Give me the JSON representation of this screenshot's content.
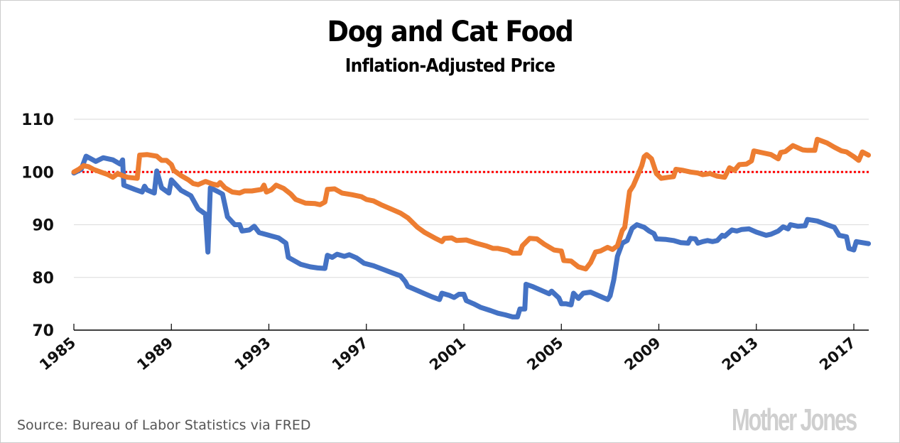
{
  "header": {
    "title": "Dog and Cat Food",
    "subtitle": "Inflation-Adjusted Price"
  },
  "footer": {
    "source": "Source: Bureau of Labor Statistics via FRED",
    "logo": "Mother Jones"
  },
  "colors": {
    "series_blue": "#4472c4",
    "series_orange": "#ed7d31",
    "reference_line": "#ff0000",
    "gridline": "#e0e0e0",
    "axis": "#000000"
  },
  "chart_data": {
    "type": "line",
    "title": "Dog and Cat Food",
    "subtitle": "Inflation-Adjusted Price",
    "xlabel": "",
    "ylabel": "",
    "xlim": [
      1985,
      2017.6
    ],
    "ylim": [
      70,
      110
    ],
    "yticks": [
      70,
      80,
      90,
      100,
      110
    ],
    "ytick_labels": [
      "70",
      "80",
      "90",
      "100",
      "110"
    ],
    "xticks": [
      1985,
      1989,
      1993,
      1997,
      2001,
      2005,
      2009,
      2013,
      2017
    ],
    "xtick_labels": [
      "1985",
      "1989",
      "1993",
      "1997",
      "2001",
      "2005",
      "2009",
      "2013",
      "2017"
    ],
    "grid": "horizontal",
    "legend": "none",
    "reference_line": {
      "y": 100,
      "style": "dotted",
      "color": "#ff0000"
    },
    "series": [
      {
        "name": "blue",
        "color": "#4472c4",
        "points": [
          [
            1985.0,
            99.8
          ],
          [
            1985.3,
            100.5
          ],
          [
            1985.5,
            103.0
          ],
          [
            1985.9,
            102.0
          ],
          [
            1986.2,
            102.7
          ],
          [
            1986.6,
            102.3
          ],
          [
            1986.9,
            101.5
          ],
          [
            1987.0,
            102.3
          ],
          [
            1987.05,
            97.5
          ],
          [
            1987.5,
            96.7
          ],
          [
            1987.8,
            96.2
          ],
          [
            1987.9,
            97.3
          ],
          [
            1988.0,
            96.6
          ],
          [
            1988.3,
            96.0
          ],
          [
            1988.4,
            100.2
          ],
          [
            1988.6,
            97.0
          ],
          [
            1988.9,
            96.0
          ],
          [
            1989.0,
            98.5
          ],
          [
            1989.4,
            96.5
          ],
          [
            1989.8,
            95.5
          ],
          [
            1990.1,
            93.0
          ],
          [
            1990.4,
            92.0
          ],
          [
            1990.5,
            84.8
          ],
          [
            1990.6,
            97.0
          ],
          [
            1990.9,
            96.3
          ],
          [
            1991.1,
            95.8
          ],
          [
            1991.3,
            91.5
          ],
          [
            1991.6,
            90.0
          ],
          [
            1991.8,
            90.0
          ],
          [
            1991.9,
            88.8
          ],
          [
            1992.2,
            89.0
          ],
          [
            1992.4,
            89.7
          ],
          [
            1992.6,
            88.5
          ],
          [
            1993.0,
            88.0
          ],
          [
            1993.4,
            87.5
          ],
          [
            1993.7,
            86.5
          ],
          [
            1993.8,
            83.8
          ],
          [
            1994.3,
            82.5
          ],
          [
            1994.7,
            82.0
          ],
          [
            1995.0,
            81.8
          ],
          [
            1995.3,
            81.7
          ],
          [
            1995.4,
            84.2
          ],
          [
            1995.6,
            83.8
          ],
          [
            1995.8,
            84.4
          ],
          [
            1996.1,
            84.0
          ],
          [
            1996.3,
            84.3
          ],
          [
            1996.6,
            83.7
          ],
          [
            1996.9,
            82.7
          ],
          [
            1997.3,
            82.2
          ],
          [
            1997.7,
            81.5
          ],
          [
            1998.1,
            80.8
          ],
          [
            1998.4,
            80.3
          ],
          [
            1998.6,
            79.2
          ],
          [
            1998.7,
            78.3
          ],
          [
            1999.1,
            77.5
          ],
          [
            1999.4,
            76.9
          ],
          [
            1999.7,
            76.3
          ],
          [
            2000.0,
            75.8
          ],
          [
            2000.1,
            77.0
          ],
          [
            2000.4,
            76.6
          ],
          [
            2000.6,
            76.2
          ],
          [
            2000.8,
            76.8
          ],
          [
            2001.0,
            76.8
          ],
          [
            2001.1,
            75.6
          ],
          [
            2001.4,
            75.0
          ],
          [
            2001.7,
            74.3
          ],
          [
            2002.1,
            73.7
          ],
          [
            2002.4,
            73.2
          ],
          [
            2002.7,
            72.9
          ],
          [
            2003.0,
            72.5
          ],
          [
            2003.2,
            72.5
          ],
          [
            2003.3,
            74.0
          ],
          [
            2003.5,
            74.0
          ],
          [
            2003.55,
            78.7
          ],
          [
            2003.8,
            78.3
          ],
          [
            2004.2,
            77.5
          ],
          [
            2004.5,
            76.9
          ],
          [
            2004.6,
            77.4
          ],
          [
            2004.9,
            76.1
          ],
          [
            2005.0,
            75.0
          ],
          [
            2005.2,
            75.0
          ],
          [
            2005.4,
            74.8
          ],
          [
            2005.5,
            77.0
          ],
          [
            2005.7,
            76.0
          ],
          [
            2005.9,
            77.0
          ],
          [
            2006.2,
            77.2
          ],
          [
            2006.4,
            76.8
          ],
          [
            2006.7,
            76.2
          ],
          [
            2006.9,
            75.8
          ],
          [
            2007.0,
            76.5
          ],
          [
            2007.15,
            79.5
          ],
          [
            2007.3,
            84.0
          ],
          [
            2007.5,
            86.5
          ],
          [
            2007.7,
            87.0
          ],
          [
            2007.9,
            89.3
          ],
          [
            2008.1,
            90.0
          ],
          [
            2008.4,
            89.5
          ],
          [
            2008.6,
            88.8
          ],
          [
            2008.8,
            88.3
          ],
          [
            2008.9,
            87.3
          ],
          [
            2009.3,
            87.2
          ],
          [
            2009.6,
            87.0
          ],
          [
            2009.9,
            86.6
          ],
          [
            2010.2,
            86.5
          ],
          [
            2010.3,
            87.4
          ],
          [
            2010.5,
            87.3
          ],
          [
            2010.6,
            86.5
          ],
          [
            2010.8,
            86.8
          ],
          [
            2011.0,
            87.0
          ],
          [
            2011.2,
            86.8
          ],
          [
            2011.4,
            87.0
          ],
          [
            2011.6,
            88.0
          ],
          [
            2011.7,
            87.8
          ],
          [
            2012.0,
            89.0
          ],
          [
            2012.2,
            88.8
          ],
          [
            2012.4,
            89.1
          ],
          [
            2012.7,
            89.2
          ],
          [
            2013.0,
            88.6
          ],
          [
            2013.4,
            88.0
          ],
          [
            2013.6,
            88.2
          ],
          [
            2013.9,
            88.8
          ],
          [
            2014.1,
            89.6
          ],
          [
            2014.3,
            89.2
          ],
          [
            2014.4,
            90.0
          ],
          [
            2014.7,
            89.7
          ],
          [
            2015.0,
            89.8
          ],
          [
            2015.1,
            91.0
          ],
          [
            2015.5,
            90.7
          ],
          [
            2015.9,
            90.0
          ],
          [
            2016.2,
            89.5
          ],
          [
            2016.4,
            88.0
          ],
          [
            2016.7,
            87.7
          ],
          [
            2016.8,
            85.5
          ],
          [
            2017.0,
            85.2
          ],
          [
            2017.1,
            86.8
          ],
          [
            2017.6,
            86.4
          ]
        ]
      },
      {
        "name": "orange",
        "color": "#ed7d31",
        "points": [
          [
            1985.0,
            100.0
          ],
          [
            1985.2,
            100.5
          ],
          [
            1985.4,
            101.2
          ],
          [
            1985.6,
            101.0
          ],
          [
            1985.8,
            100.5
          ],
          [
            1986.1,
            100.0
          ],
          [
            1986.4,
            99.5
          ],
          [
            1986.6,
            99.0
          ],
          [
            1986.8,
            99.7
          ],
          [
            1987.0,
            99.3
          ],
          [
            1987.2,
            99.0
          ],
          [
            1987.6,
            98.8
          ],
          [
            1987.7,
            103.2
          ],
          [
            1988.0,
            103.3
          ],
          [
            1988.4,
            103.0
          ],
          [
            1988.6,
            102.2
          ],
          [
            1988.8,
            102.2
          ],
          [
            1989.0,
            101.4
          ],
          [
            1989.1,
            100.3
          ],
          [
            1989.4,
            99.3
          ],
          [
            1989.7,
            98.5
          ],
          [
            1989.9,
            97.8
          ],
          [
            1990.1,
            97.6
          ],
          [
            1990.4,
            98.2
          ],
          [
            1990.7,
            97.7
          ],
          [
            1990.9,
            97.5
          ],
          [
            1991.0,
            98.0
          ],
          [
            1991.2,
            97.0
          ],
          [
            1991.5,
            96.2
          ],
          [
            1991.8,
            96.0
          ],
          [
            1992.0,
            96.4
          ],
          [
            1992.3,
            96.4
          ],
          [
            1992.7,
            96.7
          ],
          [
            1992.8,
            97.5
          ],
          [
            1992.9,
            96.2
          ],
          [
            1993.1,
            96.6
          ],
          [
            1993.3,
            97.5
          ],
          [
            1993.6,
            96.9
          ],
          [
            1993.9,
            95.8
          ],
          [
            1994.1,
            94.8
          ],
          [
            1994.5,
            94.1
          ],
          [
            1994.9,
            94.0
          ],
          [
            1995.1,
            93.8
          ],
          [
            1995.3,
            94.3
          ],
          [
            1995.4,
            96.7
          ],
          [
            1995.7,
            96.8
          ],
          [
            1996.0,
            96.0
          ],
          [
            1996.4,
            95.7
          ],
          [
            1996.8,
            95.3
          ],
          [
            1997.0,
            94.8
          ],
          [
            1997.3,
            94.5
          ],
          [
            1997.6,
            93.8
          ],
          [
            1998.1,
            92.8
          ],
          [
            1998.4,
            92.2
          ],
          [
            1998.7,
            91.3
          ],
          [
            1999.1,
            89.5
          ],
          [
            1999.4,
            88.5
          ],
          [
            1999.8,
            87.5
          ],
          [
            2000.1,
            86.8
          ],
          [
            2000.2,
            87.4
          ],
          [
            2000.5,
            87.5
          ],
          [
            2000.7,
            87.0
          ],
          [
            2001.1,
            87.1
          ],
          [
            2001.5,
            86.5
          ],
          [
            2001.9,
            86.0
          ],
          [
            2002.2,
            85.5
          ],
          [
            2002.4,
            85.5
          ],
          [
            2002.8,
            85.1
          ],
          [
            2003.0,
            84.6
          ],
          [
            2003.3,
            84.6
          ],
          [
            2003.4,
            86.0
          ],
          [
            2003.7,
            87.4
          ],
          [
            2004.0,
            87.3
          ],
          [
            2004.3,
            86.3
          ],
          [
            2004.7,
            85.2
          ],
          [
            2005.0,
            85.0
          ],
          [
            2005.1,
            83.2
          ],
          [
            2005.4,
            83.1
          ],
          [
            2005.7,
            82.0
          ],
          [
            2006.0,
            81.6
          ],
          [
            2006.2,
            82.8
          ],
          [
            2006.4,
            84.8
          ],
          [
            2006.6,
            85.0
          ],
          [
            2006.9,
            85.7
          ],
          [
            2007.1,
            85.3
          ],
          [
            2007.3,
            86.0
          ],
          [
            2007.5,
            88.9
          ],
          [
            2007.6,
            89.5
          ],
          [
            2007.8,
            96.3
          ],
          [
            2007.95,
            97.4
          ],
          [
            2008.1,
            99.0
          ],
          [
            2008.3,
            101.2
          ],
          [
            2008.4,
            102.9
          ],
          [
            2008.5,
            103.3
          ],
          [
            2008.7,
            102.5
          ],
          [
            2008.9,
            99.7
          ],
          [
            2009.1,
            98.8
          ],
          [
            2009.4,
            99.0
          ],
          [
            2009.6,
            99.1
          ],
          [
            2009.7,
            100.5
          ],
          [
            2010.0,
            100.3
          ],
          [
            2010.3,
            100.0
          ],
          [
            2010.6,
            99.8
          ],
          [
            2010.8,
            99.5
          ],
          [
            2011.1,
            99.7
          ],
          [
            2011.4,
            99.2
          ],
          [
            2011.7,
            99.0
          ],
          [
            2011.9,
            100.8
          ],
          [
            2012.1,
            100.3
          ],
          [
            2012.3,
            101.4
          ],
          [
            2012.6,
            101.5
          ],
          [
            2012.8,
            102.1
          ],
          [
            2012.9,
            104.0
          ],
          [
            2013.3,
            103.6
          ],
          [
            2013.6,
            103.3
          ],
          [
            2013.9,
            102.5
          ],
          [
            2014.0,
            103.7
          ],
          [
            2014.2,
            103.9
          ],
          [
            2014.5,
            105.0
          ],
          [
            2014.9,
            104.2
          ],
          [
            2015.1,
            104.1
          ],
          [
            2015.4,
            104.1
          ],
          [
            2015.5,
            106.2
          ],
          [
            2015.9,
            105.5
          ],
          [
            2016.2,
            104.7
          ],
          [
            2016.5,
            104.0
          ],
          [
            2016.7,
            103.8
          ],
          [
            2017.0,
            102.9
          ],
          [
            2017.2,
            102.2
          ],
          [
            2017.35,
            103.8
          ],
          [
            2017.6,
            103.2
          ]
        ]
      }
    ]
  }
}
